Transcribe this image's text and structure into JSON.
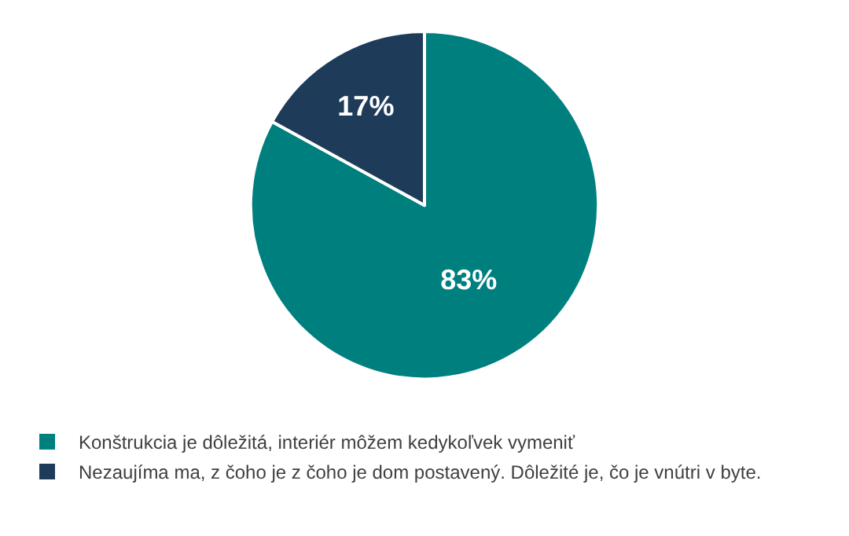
{
  "chart_data": {
    "type": "pie",
    "categories": [
      "Konštrukcia je dôležitá, interiér môžem kedykoľvek vymeniť",
      "Nezaujíma ma, z čoho je z čoho je dom postavený. Dôležité je, čo je vnútri v byte."
    ],
    "values": [
      83,
      17
    ],
    "colors": [
      "#007f7f",
      "#1f3b5a"
    ],
    "value_labels": [
      "83%",
      "17%"
    ],
    "legend": "bottom left"
  }
}
